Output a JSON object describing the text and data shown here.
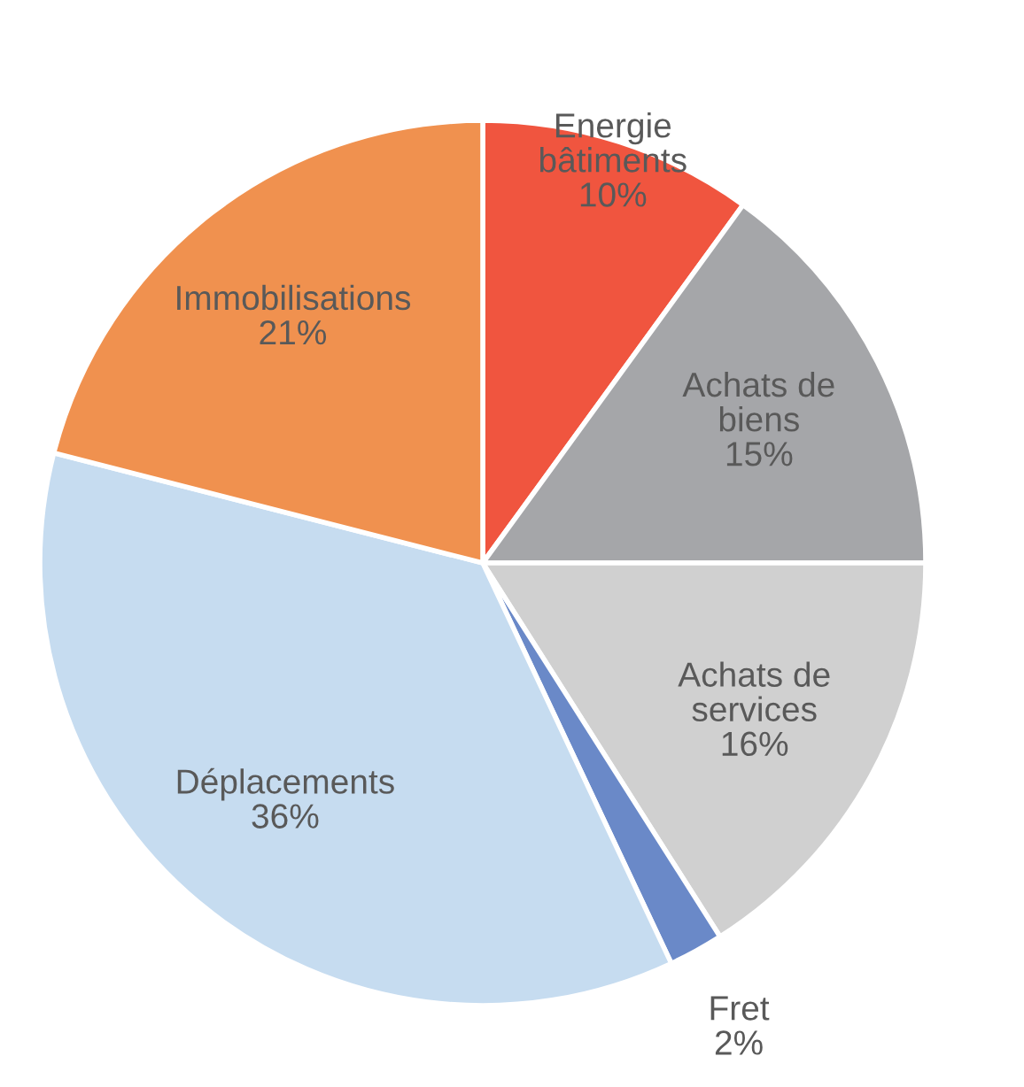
{
  "chart_data": {
    "type": "pie",
    "categories": [
      "Energie\nbâtiments",
      "Achats de\nbiens",
      "Achats de\nservices",
      "Fret",
      "Déplacements",
      "Immobilisations"
    ],
    "values": [
      10,
      15,
      16,
      2,
      36,
      21
    ],
    "value_labels": [
      "10%",
      "15%",
      "16%",
      "2%",
      "36%",
      "21%"
    ],
    "colors": [
      "#f0553f",
      "#a5a6a9",
      "#d0d0d0",
      "#6a89c8",
      "#c6dcf0",
      "#f0914f"
    ]
  }
}
